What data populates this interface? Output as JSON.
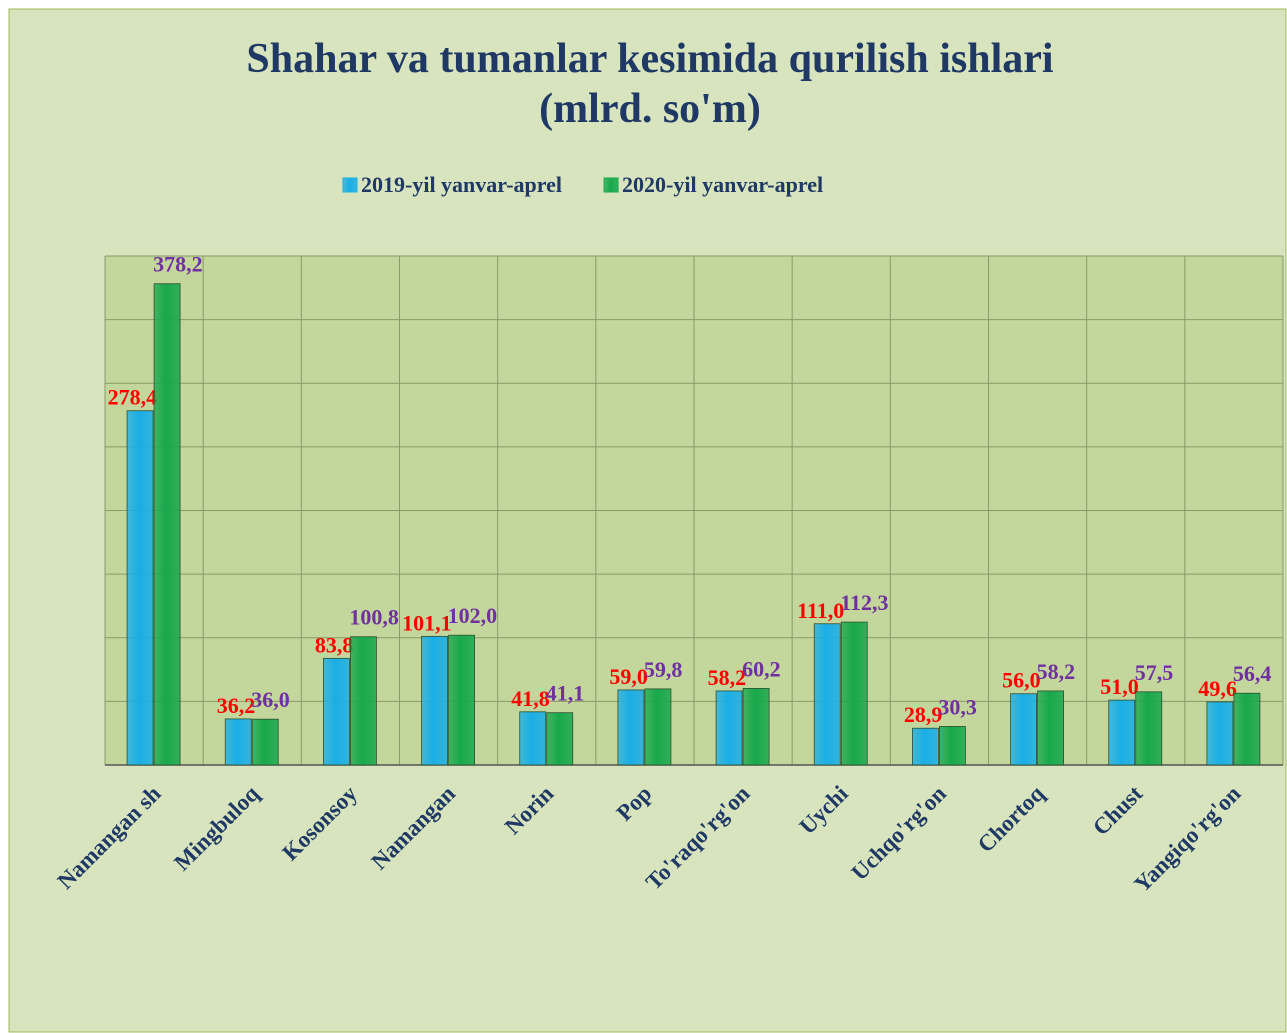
{
  "chart_data": {
    "type": "bar",
    "title": "Shahar va tumanlar kesimida qurilish ishlari",
    "subtitle": "(mlrd. so'm)",
    "categories": [
      "Namangan sh",
      "Mingbuloq",
      "Kosonsoy",
      "Namangan",
      "Norin",
      "Pop",
      "To'raqo'rg'on",
      "Uychi",
      "Uchqo'rg'on",
      "Chortoq",
      "Chust",
      "Yangiqo'rg'on"
    ],
    "series": [
      {
        "name": "2019-yil yanvar-aprel",
        "color": "#1aaee6",
        "label_color": "#ff0000",
        "values": [
          278.4,
          36.2,
          83.8,
          101.1,
          41.8,
          59.0,
          58.2,
          111.0,
          28.9,
          56.0,
          51.0,
          49.6
        ],
        "value_labels": [
          "278,4",
          "36,2",
          "83,8",
          "101,1",
          "41,8",
          "59,0",
          "58,2",
          "111,0",
          "28,9",
          "56,0",
          "51,0",
          "49,6"
        ]
      },
      {
        "name": "2020-yil yanvar-aprel",
        "color": "#18a84c",
        "label_color": "#7030a0",
        "values": [
          378.2,
          36.0,
          100.8,
          102.0,
          41.1,
          59.8,
          60.2,
          112.3,
          30.3,
          58.2,
          57.5,
          56.4
        ],
        "value_labels": [
          "378,2",
          "36,0",
          "100,8",
          "102,0",
          "41,1",
          "59,8",
          "60,2",
          "112,3",
          "30,3",
          "58,2",
          "57,5",
          "56,4"
        ]
      }
    ],
    "ylim": [
      0,
      400
    ],
    "yticks": [
      0,
      50,
      100,
      150,
      200,
      250,
      300,
      350,
      400
    ],
    "grid": true,
    "legend": "top"
  }
}
